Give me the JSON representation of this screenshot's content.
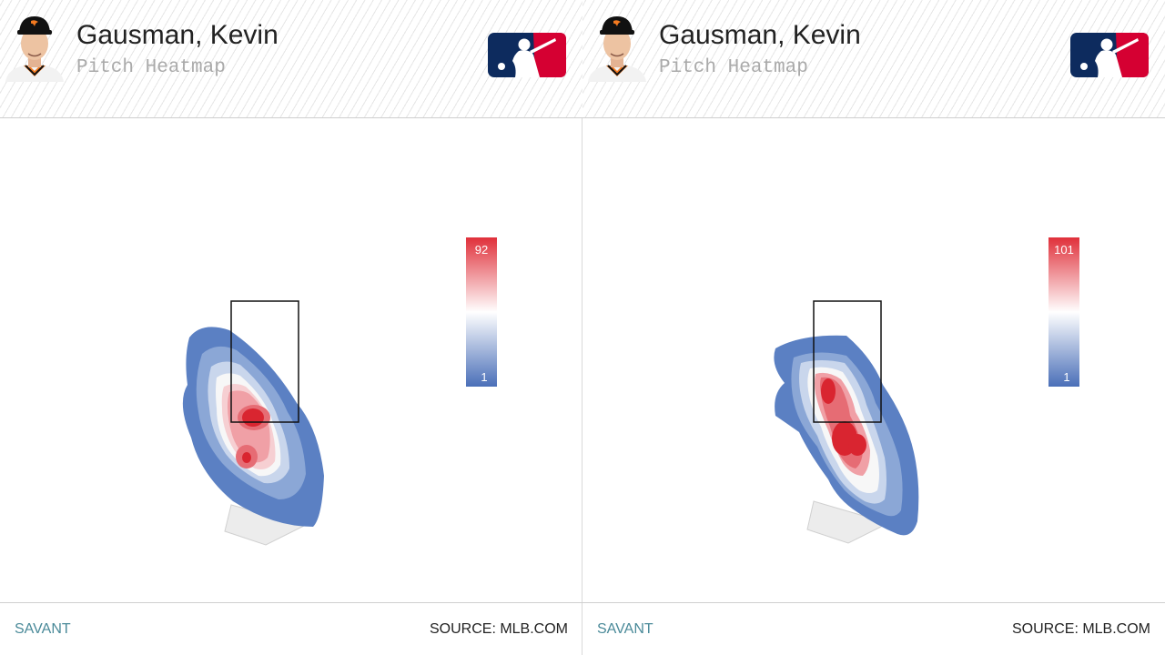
{
  "panels": [
    {
      "player_name": "Gausman, Kevin",
      "subtitle": "Pitch Heatmap",
      "logo_icon": "mlb-logo-icon",
      "avatar_icon": "player-headshot-icon",
      "brand": "SAVANT",
      "source": "SOURCE: MLB.COM"
    },
    {
      "player_name": "Gausman, Kevin",
      "subtitle": "Pitch Heatmap",
      "logo_icon": "mlb-logo-icon",
      "avatar_icon": "player-headshot-icon",
      "brand": "SAVANT",
      "source": "SOURCE: MLB.COM"
    }
  ],
  "chart_data": [
    {
      "type": "heatmap",
      "title": "",
      "xlabel": "",
      "ylabel": "",
      "colorscale": {
        "min": 1,
        "max": 92,
        "low_color": "#4a6fb8",
        "mid_color": "#ffffff",
        "high_color": "#e0303a"
      },
      "legend_placement": "right",
      "strike_zone": true,
      "home_plate": true,
      "hot_spots": [
        {
          "zone": "middle of strike zone",
          "intensity": 92
        },
        {
          "zone": "below strike zone, middle",
          "intensity": 75
        }
      ]
    },
    {
      "type": "heatmap",
      "title": "",
      "xlabel": "",
      "ylabel": "",
      "colorscale": {
        "min": 1,
        "max": 101,
        "low_color": "#4a6fb8",
        "mid_color": "#ffffff",
        "high_color": "#e0303a"
      },
      "legend_placement": "right",
      "strike_zone": true,
      "home_plate": true,
      "hot_spots": [
        {
          "zone": "middle-left of strike zone",
          "intensity": 90
        },
        {
          "zone": "just below strike zone, middle",
          "intensity": 101
        }
      ]
    }
  ]
}
